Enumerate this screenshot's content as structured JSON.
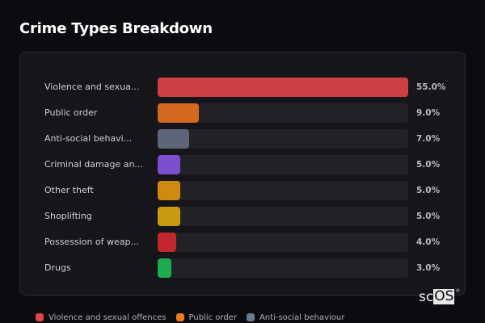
{
  "title": "Crime Types Breakdown",
  "chart_data": {
    "type": "bar",
    "orientation": "horizontal",
    "title": "Crime Types Breakdown",
    "categories": [
      "Violence and sexual offences",
      "Public order",
      "Anti-social behaviour",
      "Criminal damage and arson",
      "Other theft",
      "Shoplifting",
      "Possession of weapons",
      "Drugs"
    ],
    "display_labels": [
      "Violence and sexua...",
      "Public order",
      "Anti-social behavi...",
      "Criminal damage an...",
      "Other theft",
      "Shoplifting",
      "Possession of weap...",
      "Drugs"
    ],
    "values": [
      55.0,
      9.0,
      7.0,
      5.0,
      5.0,
      5.0,
      4.0,
      3.0
    ],
    "value_labels": [
      "55.0%",
      "9.0%",
      "7.0%",
      "5.0%",
      "5.0%",
      "5.0%",
      "4.0%",
      "3.0%"
    ],
    "colors": [
      "#cf4044",
      "#d2691e",
      "#5d6678",
      "#7b4fd0",
      "#d08a12",
      "#c99a10",
      "#c0282c",
      "#1faa4f"
    ],
    "unit": "%",
    "scale_max": 55.0,
    "grid": false,
    "legend_position": "bottom",
    "legend": [
      {
        "label": "Violence and sexual offences",
        "color": "#e04448"
      },
      {
        "label": "Public order",
        "color": "#f07a22"
      },
      {
        "label": "Anti-social behaviour",
        "color": "#6c7a90"
      }
    ]
  },
  "watermark": {
    "prefix": "sc",
    "boxed": "OS",
    "mark": "®"
  }
}
